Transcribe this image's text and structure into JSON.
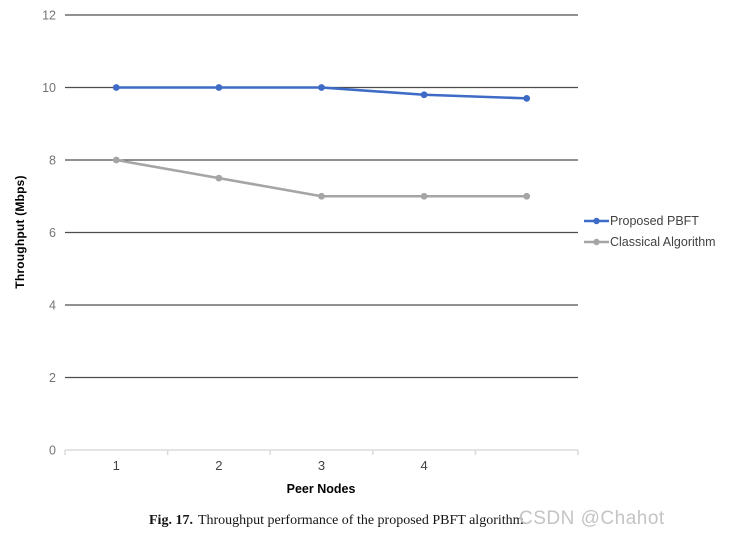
{
  "figure": {
    "caption_label": "Fig. 17.",
    "caption_text": "Throughput performance of the proposed PBFT algorithm.",
    "watermark": "CSDN @Chahot"
  },
  "chart_data": {
    "type": "line",
    "title": "",
    "xlabel": "Peer Nodes",
    "ylabel": "Throughput (Mbps)",
    "x": [
      1,
      2,
      3,
      4,
      5
    ],
    "x_tick_labels": [
      "1",
      "2",
      "3",
      "4",
      ""
    ],
    "ylim": [
      0,
      12
    ],
    "ytick_step": 2,
    "ytick_labels": [
      "0",
      "2",
      "4",
      "6",
      "8",
      "10",
      "12"
    ],
    "grid": true,
    "legend_position": "right",
    "series": [
      {
        "name": "Proposed PBFT",
        "color": "#3d6bc6",
        "values": [
          10,
          10,
          10,
          9.8,
          9.7
        ]
      },
      {
        "name": "Classical Algorithm",
        "color": "#a5a5a5",
        "values": [
          8,
          7.5,
          7,
          7,
          7
        ]
      }
    ]
  },
  "colors": {
    "gridline": "#4d4d4d",
    "baseline": "#dcdcdc",
    "y_tick_label": "#757575",
    "x_tick_label": "#424242",
    "legend_text": "#424242",
    "watermark": "#c4c4c4"
  }
}
